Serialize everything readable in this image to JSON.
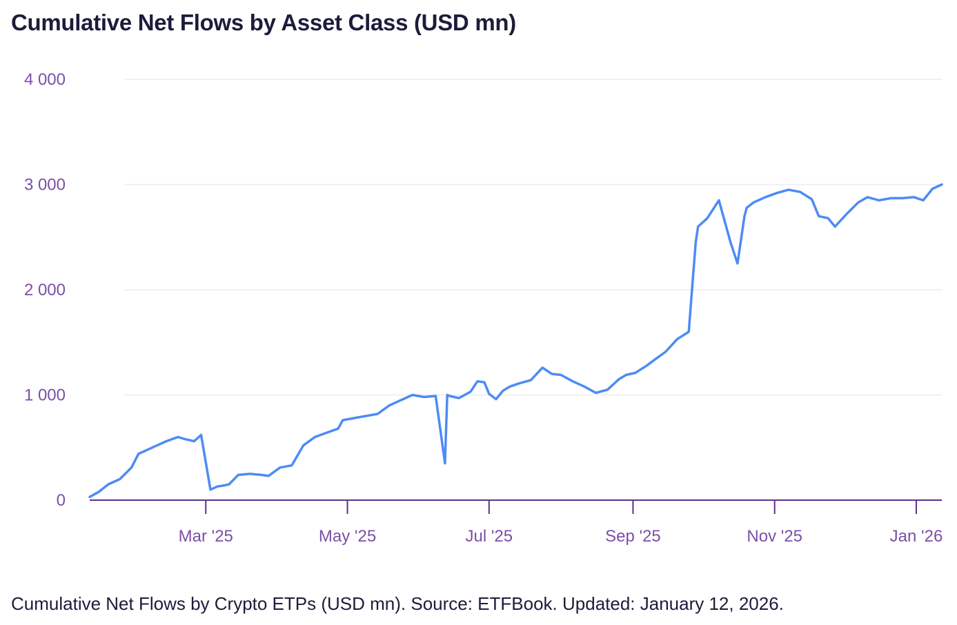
{
  "title": "Cumulative Net Flows by Asset Class (USD mn)",
  "caption": "Cumulative Net Flows by Crypto ETPs (USD mn). Source: ETFBook. Updated: January 12, 2026.",
  "colors": {
    "line": "#4d8bf5",
    "axis": "#5b2f8f",
    "tick_text": "#7b4fa8",
    "grid": "#ececf2",
    "title": "#1c1c3a"
  },
  "chart_data": {
    "type": "line",
    "title": "Cumulative Net Flows by Asset Class (USD mn)",
    "xlabel": "",
    "ylabel": "",
    "ylim": [
      0,
      4000
    ],
    "yticks": [
      0,
      1000,
      2000,
      3000,
      4000
    ],
    "ytick_labels": [
      "0",
      "1 000",
      "2 000",
      "3 000",
      "4 000"
    ],
    "xlim": [
      "2025-01-10",
      "2026-01-12"
    ],
    "xticks": [
      "2025-03-01",
      "2025-05-01",
      "2025-07-01",
      "2025-09-01",
      "2025-11-01",
      "2026-01-01"
    ],
    "xtick_labels": [
      "Mar '25",
      "May '25",
      "Jul '25",
      "Sep '25",
      "Nov '25",
      "Jan '26"
    ],
    "grid": true,
    "series": [
      {
        "color": "#4d8bf5",
        "x": [
          "2025-01-10",
          "2025-01-14",
          "2025-01-18",
          "2025-01-23",
          "2025-01-28",
          "2025-01-31",
          "2025-02-03",
          "2025-02-07",
          "2025-02-12",
          "2025-02-17",
          "2025-02-20",
          "2025-02-24",
          "2025-02-27",
          "2025-03-03",
          "2025-03-06",
          "2025-03-09",
          "2025-03-11",
          "2025-03-15",
          "2025-03-20",
          "2025-03-25",
          "2025-03-28",
          "2025-04-02",
          "2025-04-07",
          "2025-04-12",
          "2025-04-17",
          "2025-04-22",
          "2025-04-27",
          "2025-04-29",
          "2025-05-04",
          "2025-05-09",
          "2025-05-14",
          "2025-05-19",
          "2025-05-24",
          "2025-05-29",
          "2025-06-03",
          "2025-06-08",
          "2025-06-12",
          "2025-06-13",
          "2025-06-14",
          "2025-06-18",
          "2025-06-23",
          "2025-06-26",
          "2025-06-29",
          "2025-07-01",
          "2025-07-04",
          "2025-07-07",
          "2025-07-10",
          "2025-07-14",
          "2025-07-19",
          "2025-07-24",
          "2025-07-28",
          "2025-08-01",
          "2025-08-06",
          "2025-08-11",
          "2025-08-16",
          "2025-08-21",
          "2025-08-26",
          "2025-08-29",
          "2025-09-02",
          "2025-09-07",
          "2025-09-10",
          "2025-09-15",
          "2025-09-20",
          "2025-09-25",
          "2025-09-28",
          "2025-09-29",
          "2025-10-03",
          "2025-10-08",
          "2025-10-13",
          "2025-10-16",
          "2025-10-19",
          "2025-10-20",
          "2025-10-23",
          "2025-10-28",
          "2025-11-02",
          "2025-11-07",
          "2025-11-12",
          "2025-11-17",
          "2025-11-20",
          "2025-11-24",
          "2025-11-27",
          "2025-12-02",
          "2025-12-07",
          "2025-12-11",
          "2025-12-16",
          "2025-12-21",
          "2025-12-26",
          "2025-12-31",
          "2026-01-04",
          "2026-01-08",
          "2026-01-12"
        ],
        "y": [
          30,
          80,
          150,
          200,
          310,
          440,
          470,
          510,
          560,
          600,
          580,
          560,
          620,
          100,
          130,
          140,
          150,
          240,
          250,
          240,
          230,
          310,
          330,
          520,
          600,
          640,
          680,
          760,
          780,
          800,
          820,
          900,
          950,
          1000,
          980,
          990,
          350,
          1000,
          990,
          970,
          1030,
          1130,
          1120,
          1010,
          960,
          1040,
          1080,
          1110,
          1140,
          1260,
          1200,
          1190,
          1130,
          1080,
          1020,
          1050,
          1150,
          1190,
          1210,
          1280,
          1330,
          1410,
          1530,
          1600,
          2450,
          2600,
          2680,
          2850,
          2450,
          2250,
          2700,
          2780,
          2830,
          2880,
          2920,
          2950,
          2930,
          2860,
          2700,
          2680,
          2600,
          2720,
          2830,
          2880,
          2850,
          2870,
          2870,
          2880,
          2850,
          2960,
          3000
        ]
      }
    ]
  }
}
